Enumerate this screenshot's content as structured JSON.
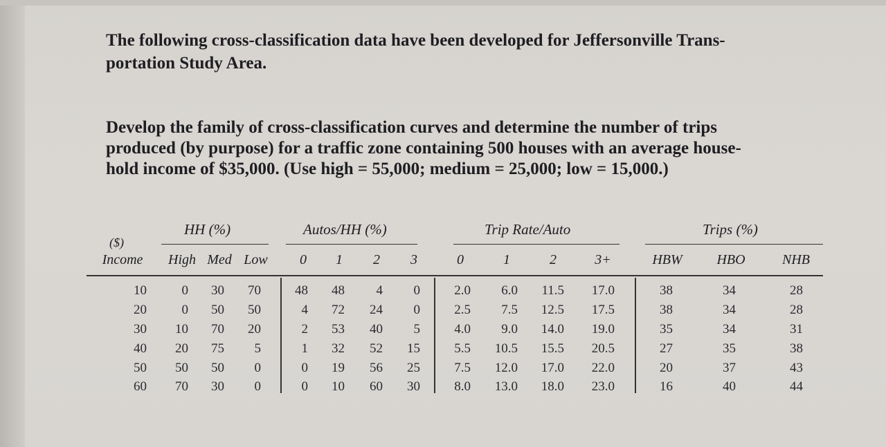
{
  "intro": "The following cross-classification data have been developed for Jeffersonville Trans- portation Study Area.",
  "intro_lines": [
    "The following cross-classification data have been developed for Jeffersonville Trans-",
    "portation Study Area."
  ],
  "task_lines": [
    "Develop the family of cross-classification curves and determine the number of trips",
    "produced (by purpose) for a traffic zone containing 500 houses with an average house-",
    "hold income of $35,000. (Use high = 55,000; medium = 25,000; low = 15,000.)"
  ],
  "table": {
    "group_headers": [
      "HH (%)",
      "Autos/HH (%)",
      "Trip Rate/Auto",
      "Trips (%)"
    ],
    "income_unit": "($)",
    "columns": [
      "Income",
      "High",
      "Med",
      "Low",
      "0",
      "1",
      "2",
      "3",
      "0",
      "1",
      "2",
      "3+",
      "HBW",
      "HBO",
      "NHB"
    ],
    "rows": [
      [
        "10",
        "0",
        "30",
        "70",
        "48",
        "48",
        "4",
        "0",
        "2.0",
        "6.0",
        "11.5",
        "17.0",
        "38",
        "34",
        "28"
      ],
      [
        "20",
        "0",
        "50",
        "50",
        "4",
        "72",
        "24",
        "0",
        "2.5",
        "7.5",
        "12.5",
        "17.5",
        "38",
        "34",
        "28"
      ],
      [
        "30",
        "10",
        "70",
        "20",
        "2",
        "53",
        "40",
        "5",
        "4.0",
        "9.0",
        "14.0",
        "19.0",
        "35",
        "34",
        "31"
      ],
      [
        "40",
        "20",
        "75",
        "5",
        "1",
        "32",
        "52",
        "15",
        "5.5",
        "10.5",
        "15.5",
        "20.5",
        "27",
        "35",
        "38"
      ],
      [
        "50",
        "50",
        "50",
        "0",
        "0",
        "19",
        "56",
        "25",
        "7.5",
        "12.0",
        "17.0",
        "22.0",
        "20",
        "37",
        "43"
      ],
      [
        "60",
        "70",
        "30",
        "0",
        "0",
        "10",
        "60",
        "30",
        "8.0",
        "13.0",
        "18.0",
        "23.0",
        "16",
        "40",
        "44"
      ]
    ]
  }
}
